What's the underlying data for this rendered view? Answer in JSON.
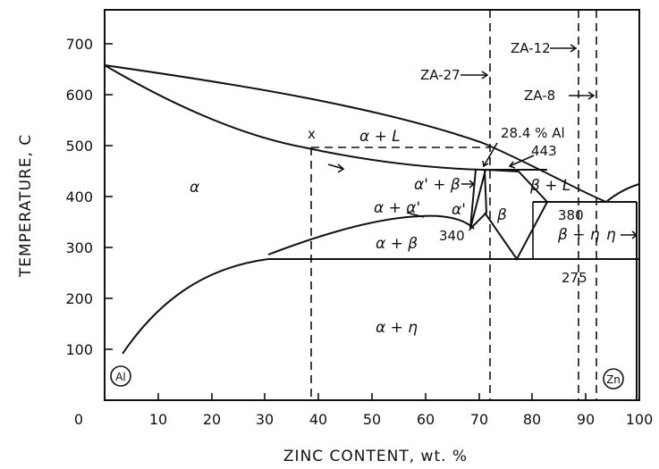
{
  "y_ticks": [
    "700",
    "600",
    "500",
    "400",
    "300",
    "200",
    "100"
  ],
  "x_ticks": [
    "0",
    "10",
    "20",
    "30",
    "40",
    "50",
    "60",
    "70",
    "80",
    "90",
    "100"
  ],
  "axis": {
    "x_label": "ZINC CONTENT,   wt. %",
    "y_label": "TEMPERATURE,   C"
  },
  "regions": {
    "alpha": "α",
    "alpha_liquid": "α + L",
    "alphaprime_beta": "α' + β",
    "alpha_alphaprime": "α + α'",
    "alphaprime": "α'",
    "beta": "β",
    "beta_liquid": "β + L",
    "alpha_beta": "α + β",
    "beta_eta": "β + η",
    "eta": "η",
    "alpha_eta": "α + η"
  },
  "annotations": {
    "x_mark": "x",
    "al_percent": "28.4 % Al",
    "t443": "443",
    "t380": "380",
    "t340": "340",
    "t275": "275",
    "za27": "ZA-27",
    "za12": "ZA-12",
    "za8": "ZA-8",
    "al_circle": "Al",
    "zn_circle": "Zn"
  }
}
